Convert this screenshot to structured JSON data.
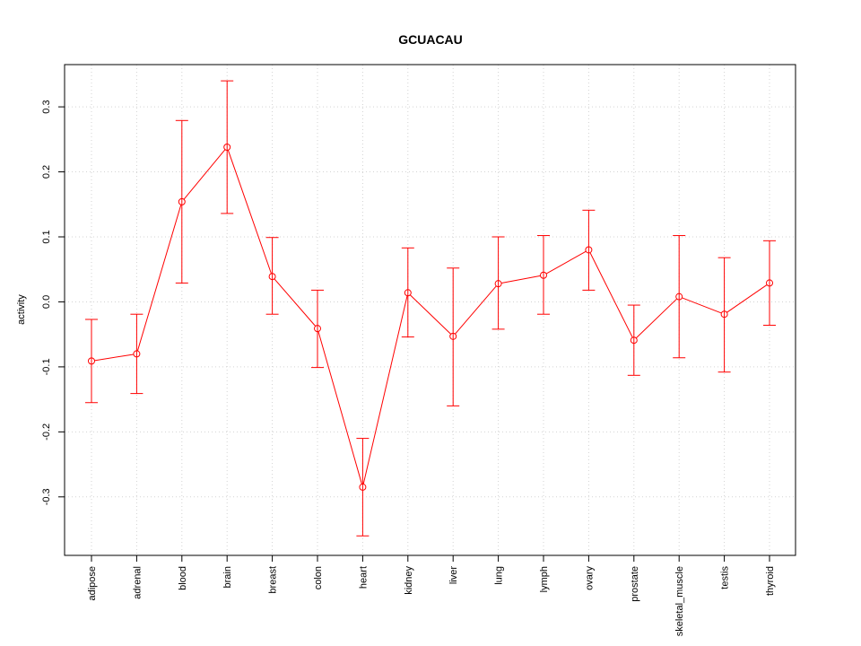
{
  "chart_data": {
    "type": "line",
    "title": "GCUACAU",
    "xlabel": "",
    "ylabel": "activity",
    "categories": [
      "adipose",
      "adrenal",
      "blood",
      "brain",
      "breast",
      "colon",
      "heart",
      "kidney",
      "liver",
      "lung",
      "lymph",
      "ovary",
      "prostate",
      "skeletal_muscle",
      "testis",
      "thyroid"
    ],
    "series": [
      {
        "values": [
          -0.091,
          -0.08,
          0.154,
          0.238,
          0.039,
          -0.041,
          -0.285,
          0.014,
          -0.053,
          0.028,
          0.041,
          0.08,
          -0.059,
          0.008,
          -0.019,
          0.029
        ],
        "lower": [
          -0.155,
          -0.141,
          0.029,
          0.136,
          -0.019,
          -0.101,
          -0.36,
          -0.054,
          -0.16,
          -0.042,
          -0.019,
          0.018,
          -0.113,
          -0.086,
          -0.108,
          -0.036
        ],
        "upper": [
          -0.027,
          -0.019,
          0.279,
          0.34,
          0.099,
          0.018,
          -0.21,
          0.083,
          0.052,
          0.1,
          0.102,
          0.141,
          -0.005,
          0.102,
          0.068,
          0.094
        ]
      }
    ],
    "ylim": [
      -0.39,
      0.365
    ],
    "yticks": [
      -0.3,
      -0.2,
      -0.1,
      0.0,
      0.1,
      0.2,
      0.3
    ],
    "ytick_labels": [
      "-0.3",
      "-0.2",
      "-0.1",
      "0.0",
      "0.1",
      "0.2",
      "0.3"
    ],
    "grid": true,
    "color": "#ff0000",
    "grid_color": "#d3d3d3"
  }
}
